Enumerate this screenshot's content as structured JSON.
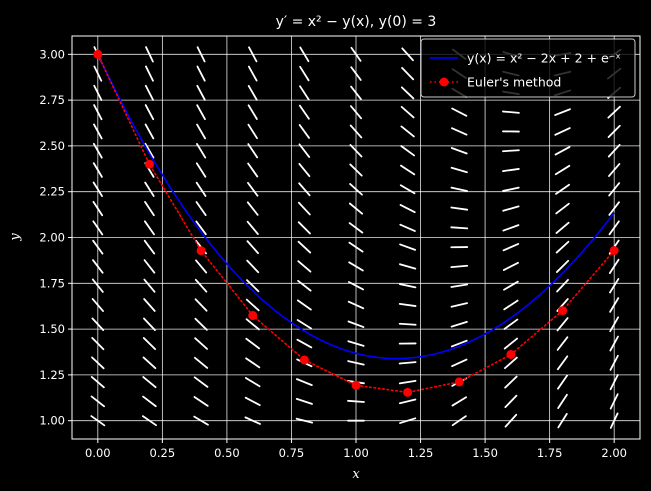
{
  "chart_data": {
    "type": "line",
    "title": "y′ = x² − y(x), y(0) = 3",
    "xlabel": "x",
    "ylabel": "y",
    "xlim": [
      -0.1,
      2.1
    ],
    "ylim": [
      0.9,
      3.1
    ],
    "grid": true,
    "xticks": [
      0.0,
      0.25,
      0.5,
      0.75,
      1.0,
      1.25,
      1.5,
      1.75,
      2.0
    ],
    "yticks": [
      1.0,
      1.25,
      1.5,
      1.75,
      2.0,
      2.25,
      2.5,
      2.75,
      3.0
    ],
    "xtick_labels": [
      "0.00",
      "0.25",
      "0.50",
      "0.75",
      "1.00",
      "1.25",
      "1.50",
      "1.75",
      "2.00"
    ],
    "ytick_labels": [
      "1.00",
      "1.25",
      "1.50",
      "1.75",
      "2.00",
      "2.25",
      "2.50",
      "2.75",
      "3.00"
    ],
    "slope_field": {
      "x": [
        0.0,
        0.2,
        0.4,
        0.6,
        0.8,
        1.0,
        1.2,
        1.4,
        1.6,
        1.8,
        2.0
      ],
      "y_from": 1.0,
      "y_to": 3.0,
      "y_count": 20,
      "equation": "x^2 - y",
      "color": "#ffffff"
    },
    "series": [
      {
        "name": "exact",
        "label": "y(x) = x² − 2x + 2 + e⁻ˣ",
        "formula": "x^2 - 2x + 2 + exp(-x)",
        "x_range": [
          0.0,
          2.0
        ],
        "color": "#0000ff",
        "style": "solid"
      },
      {
        "name": "euler",
        "label": "Euler's method",
        "x": [
          0.0,
          0.2,
          0.4,
          0.6,
          0.8,
          1.0,
          1.2,
          1.4,
          1.6,
          1.8,
          2.0
        ],
        "y": [
          3.0,
          2.4,
          1.928,
          1.5744,
          1.33152,
          1.193216,
          1.1545728,
          1.21165824,
          1.361326592,
          1.60106127,
          1.928849016
        ],
        "color": "#ff0000",
        "style": "dotted",
        "marker": "circle"
      }
    ],
    "legend": {
      "location": "top-right"
    }
  }
}
